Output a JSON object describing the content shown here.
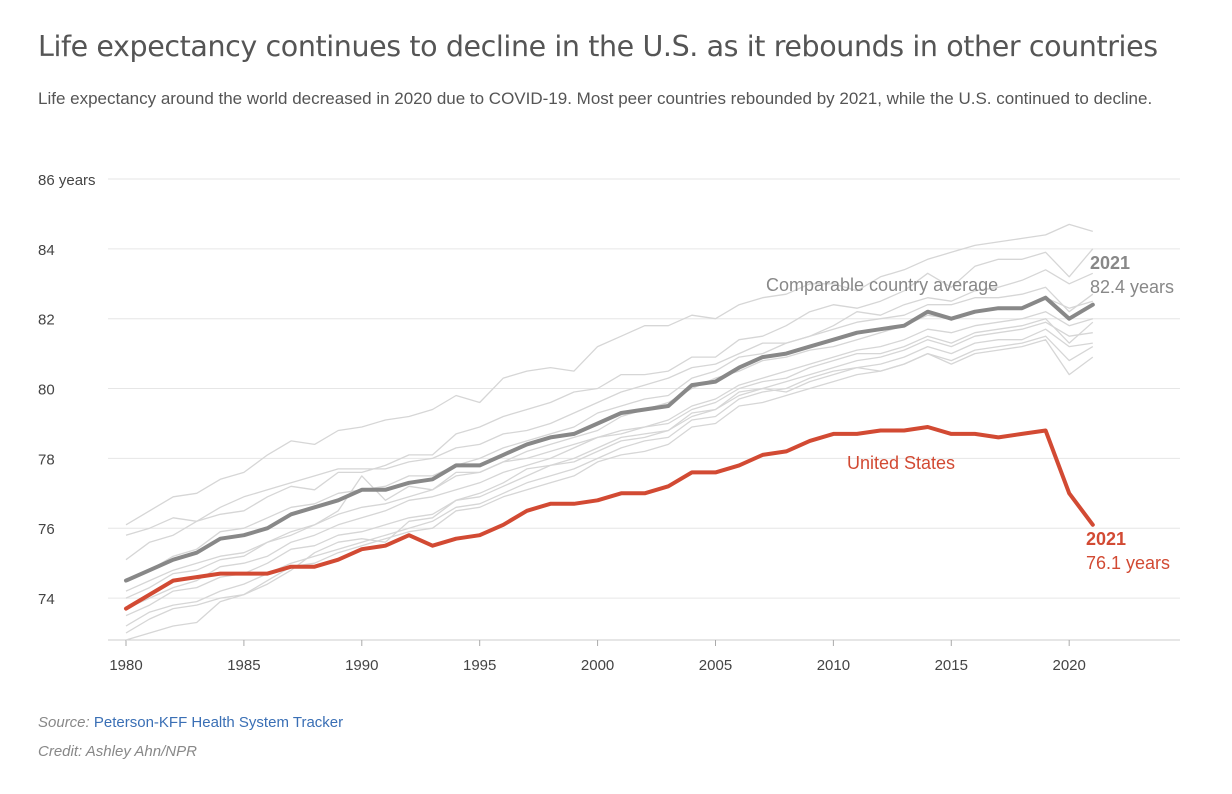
{
  "header": {
    "title": "Life expectancy continues to decline in the U.S. as it rebounds in other countries",
    "subtitle": "Life expectancy around the world decreased in 2020 due to COVID-19. Most peer countries rebounded by 2021, while the U.S. continued to decline."
  },
  "footer": {
    "source_label": "Source:",
    "source_link": "Peterson-KFF Health System Tracker",
    "credit": "Credit: Ashley Ahn/NPR"
  },
  "colors": {
    "us": "#d24a33",
    "average": "#888888",
    "peers": "#d6d6d6",
    "grid": "#e6e6e6",
    "text": "#555555"
  },
  "chart_data": {
    "type": "line",
    "ylim": [
      72.8,
      86
    ],
    "xlim": [
      1980,
      2024.7
    ],
    "y_ticks": [
      74,
      76,
      78,
      80,
      82,
      84,
      86
    ],
    "y_tick_labels": [
      "74",
      "76",
      "78",
      "80",
      "82",
      "84",
      "86 years"
    ],
    "x_ticks": [
      1980,
      1985,
      1990,
      1995,
      2000,
      2005,
      2010,
      2015,
      2020
    ],
    "x_tick_labels": [
      "1980",
      "1985",
      "1990",
      "1995",
      "2000",
      "2005",
      "2010",
      "2015",
      "2020"
    ],
    "grid": true,
    "x": [
      1980,
      1981,
      1982,
      1983,
      1984,
      1985,
      1986,
      1987,
      1988,
      1989,
      1990,
      1991,
      1992,
      1993,
      1994,
      1995,
      1996,
      1997,
      1998,
      1999,
      2000,
      2001,
      2002,
      2003,
      2004,
      2005,
      2006,
      2007,
      2008,
      2009,
      2010,
      2011,
      2012,
      2013,
      2014,
      2015,
      2016,
      2017,
      2018,
      2019,
      2020,
      2021
    ],
    "us_series": {
      "name": "United States",
      "values": [
        73.7,
        74.1,
        74.5,
        74.6,
        74.7,
        74.7,
        74.7,
        74.9,
        74.9,
        75.1,
        75.4,
        75.5,
        75.8,
        75.5,
        75.7,
        75.8,
        76.1,
        76.5,
        76.7,
        76.7,
        76.8,
        77.0,
        77.0,
        77.2,
        77.6,
        77.6,
        77.8,
        78.1,
        78.2,
        78.5,
        78.7,
        78.7,
        78.8,
        78.8,
        78.9,
        78.7,
        78.7,
        78.6,
        78.7,
        78.8,
        77.0,
        76.1
      ],
      "end_year_label": "2021",
      "end_value_label": "76.1 years"
    },
    "average_series": {
      "name": "Comparable country average",
      "values": [
        74.5,
        74.8,
        75.1,
        75.3,
        75.7,
        75.8,
        76.0,
        76.4,
        76.6,
        76.8,
        77.1,
        77.1,
        77.3,
        77.4,
        77.8,
        77.8,
        78.1,
        78.4,
        78.6,
        78.7,
        79.0,
        79.3,
        79.4,
        79.5,
        80.1,
        80.2,
        80.6,
        80.9,
        81.0,
        81.2,
        81.4,
        81.6,
        81.7,
        81.8,
        82.2,
        82.0,
        82.2,
        82.3,
        82.3,
        82.6,
        82.0,
        82.4
      ],
      "end_year_label": "2021",
      "end_value_label": "82.4 years"
    },
    "peer_series": [
      {
        "values": [
          76.1,
          76.5,
          76.9,
          77.0,
          77.4,
          77.6,
          78.1,
          78.5,
          78.4,
          78.8,
          78.9,
          79.1,
          79.2,
          79.4,
          79.8,
          79.6,
          80.3,
          80.5,
          80.6,
          80.5,
          81.2,
          81.5,
          81.8,
          81.8,
          82.1,
          82.0,
          82.4,
          82.6,
          82.7,
          83.0,
          83.0,
          82.8,
          83.2,
          83.4,
          83.7,
          83.9,
          84.1,
          84.2,
          84.3,
          84.4,
          84.7,
          84.5
        ]
      },
      {
        "values": [
          75.8,
          76.0,
          76.3,
          76.2,
          76.4,
          76.5,
          76.9,
          77.2,
          77.1,
          77.6,
          77.6,
          77.8,
          78.1,
          78.1,
          78.7,
          78.9,
          79.2,
          79.4,
          79.6,
          79.9,
          80.0,
          80.4,
          80.4,
          80.5,
          80.9,
          80.9,
          81.4,
          81.5,
          81.8,
          82.2,
          82.4,
          82.3,
          82.5,
          82.8,
          83.3,
          82.9,
          83.5,
          83.7,
          83.7,
          83.9,
          83.2,
          84.0
        ]
      },
      {
        "values": [
          75.1,
          75.6,
          75.8,
          76.2,
          76.6,
          76.9,
          77.1,
          77.3,
          77.5,
          77.7,
          77.7,
          77.7,
          77.9,
          78.0,
          78.3,
          78.4,
          78.7,
          78.8,
          79.0,
          79.3,
          79.6,
          79.9,
          80.1,
          80.3,
          80.6,
          80.7,
          81.0,
          81.3,
          81.3,
          81.5,
          81.8,
          82.2,
          82.1,
          82.4,
          82.6,
          82.5,
          82.8,
          82.9,
          83.1,
          83.4,
          83.0,
          83.3
        ]
      },
      {
        "values": [
          74.5,
          74.8,
          75.2,
          75.4,
          75.9,
          76.0,
          76.3,
          76.6,
          76.7,
          77.0,
          77.1,
          77.2,
          77.5,
          77.5,
          77.8,
          78.0,
          78.3,
          78.5,
          78.7,
          78.9,
          79.3,
          79.5,
          79.7,
          79.8,
          80.3,
          80.5,
          80.9,
          81.0,
          81.3,
          81.5,
          81.7,
          81.9,
          82.0,
          82.1,
          82.4,
          82.4,
          82.6,
          82.6,
          82.7,
          82.9,
          82.2,
          82.7
        ]
      },
      {
        "values": [
          74.2,
          74.5,
          74.8,
          75.0,
          75.2,
          75.3,
          75.6,
          75.8,
          76.1,
          76.5,
          77.5,
          76.8,
          77.2,
          77.1,
          77.5,
          77.6,
          77.9,
          78.2,
          78.4,
          78.6,
          78.8,
          79.2,
          79.4,
          79.6,
          80.0,
          80.3,
          80.5,
          80.8,
          80.9,
          81.1,
          81.2,
          81.4,
          81.6,
          81.8,
          82.1,
          82.0,
          82.2,
          82.3,
          82.3,
          82.6,
          82.3,
          82.5
        ]
      },
      {
        "values": [
          74.0,
          74.3,
          74.7,
          74.8,
          75.1,
          75.2,
          75.6,
          75.9,
          76.1,
          76.4,
          76.6,
          76.7,
          76.9,
          77.1,
          77.6,
          77.6,
          77.9,
          78.0,
          78.2,
          78.4,
          78.6,
          78.8,
          78.9,
          79.1,
          79.5,
          79.7,
          80.1,
          80.3,
          80.5,
          80.7,
          80.9,
          81.1,
          81.2,
          81.4,
          81.7,
          81.6,
          81.8,
          81.9,
          82.0,
          82.2,
          81.8,
          82.0
        ]
      },
      {
        "values": [
          73.7,
          74.0,
          74.3,
          74.5,
          74.9,
          75.0,
          75.2,
          75.6,
          75.8,
          76.1,
          76.3,
          76.5,
          76.8,
          76.9,
          77.1,
          77.3,
          77.6,
          77.8,
          78.0,
          78.3,
          78.6,
          78.7,
          78.9,
          79.0,
          79.4,
          79.6,
          80.0,
          80.2,
          80.3,
          80.6,
          80.8,
          81.0,
          81.0,
          81.2,
          81.5,
          81.3,
          81.6,
          81.7,
          81.8,
          82.0,
          81.3,
          81.9
        ]
      },
      {
        "values": [
          73.5,
          73.8,
          74.2,
          74.3,
          74.6,
          74.7,
          75.0,
          75.4,
          75.5,
          75.8,
          75.9,
          76.1,
          76.3,
          76.4,
          76.8,
          77.0,
          77.3,
          77.7,
          77.8,
          78.0,
          78.3,
          78.6,
          78.7,
          78.8,
          79.3,
          79.4,
          79.9,
          80.0,
          80.2,
          80.4,
          80.6,
          80.8,
          80.9,
          81.1,
          81.4,
          81.2,
          81.5,
          81.6,
          81.7,
          81.9,
          81.5,
          81.6
        ]
      },
      {
        "values": [
          73.2,
          73.6,
          73.8,
          73.9,
          74.2,
          74.4,
          74.7,
          75.0,
          75.2,
          75.4,
          75.6,
          75.8,
          76.0,
          76.2,
          76.6,
          76.7,
          77.0,
          77.3,
          77.5,
          77.7,
          78.0,
          78.3,
          78.5,
          78.6,
          79.1,
          79.2,
          79.7,
          79.9,
          80.0,
          80.3,
          80.5,
          80.6,
          80.7,
          80.9,
          81.2,
          81.0,
          81.3,
          81.4,
          81.4,
          81.7,
          81.2,
          81.3
        ]
      },
      {
        "values": [
          73.0,
          73.4,
          73.7,
          73.8,
          74.0,
          74.1,
          74.5,
          74.9,
          75.0,
          75.3,
          75.5,
          75.7,
          75.9,
          76.0,
          76.5,
          76.6,
          76.9,
          77.1,
          77.3,
          77.5,
          77.9,
          78.1,
          78.2,
          78.4,
          78.9,
          79.0,
          79.5,
          79.6,
          79.8,
          80.0,
          80.2,
          80.4,
          80.5,
          80.7,
          81.0,
          80.8,
          81.1,
          81.2,
          81.3,
          81.5,
          80.8,
          81.2
        ]
      },
      {
        "values": [
          72.8,
          73.0,
          73.2,
          73.3,
          73.9,
          74.1,
          74.4,
          74.8,
          75.3,
          75.6,
          75.7,
          75.6,
          76.2,
          76.3,
          76.8,
          76.9,
          77.2,
          77.5,
          77.8,
          77.9,
          78.2,
          78.5,
          78.6,
          78.8,
          79.2,
          79.4,
          79.8,
          80.0,
          79.9,
          80.2,
          80.4,
          80.6,
          80.5,
          80.7,
          81.0,
          80.7,
          81.0,
          81.1,
          81.2,
          81.4,
          80.4,
          80.9
        ]
      }
    ]
  }
}
